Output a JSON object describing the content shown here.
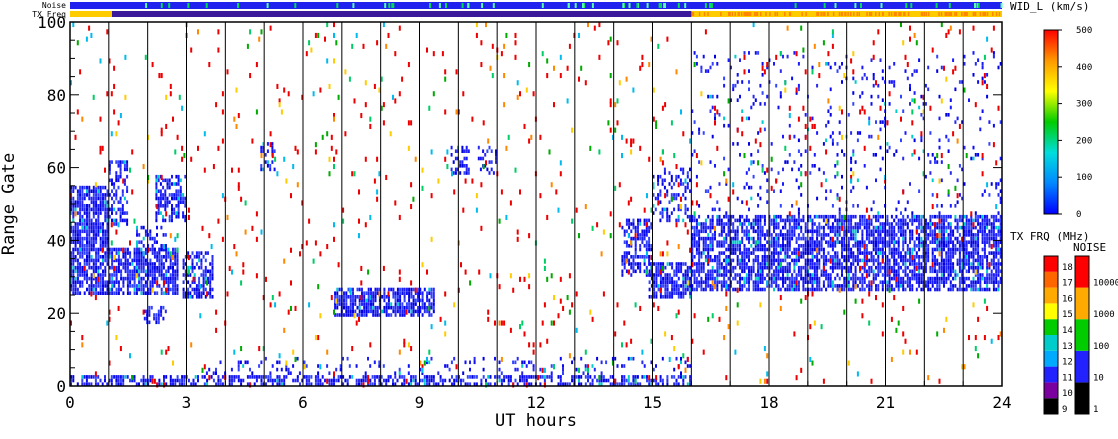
{
  "chart_data": {
    "type": "heatmap",
    "xlabel": "UT hours",
    "ylabel": "Range Gate",
    "xlim": [
      0,
      24
    ],
    "ylim": [
      0,
      100
    ],
    "x_ticks": [
      0,
      3,
      6,
      9,
      12,
      15,
      18,
      21,
      24
    ],
    "x_tick_labels": [
      "0",
      "3",
      "6",
      "9",
      "12",
      "15",
      "18",
      "21",
      "24"
    ],
    "y_ticks": [
      0,
      20,
      40,
      60,
      80,
      100
    ],
    "y_tick_labels": [
      "0",
      "20",
      "40",
      "60",
      "80",
      "100"
    ],
    "hour_lines": [
      1,
      2,
      3,
      4,
      5,
      6,
      7,
      8,
      9,
      10,
      11,
      12,
      13,
      14,
      15,
      16,
      17,
      18,
      19,
      20,
      21,
      22,
      23
    ],
    "grid": false,
    "header_bars": {
      "noise_label": "Noise",
      "txfreq_label": "TX Freq",
      "txfreq_color_change_hour": 16
    },
    "scatter_regions": [
      {
        "t0": 0.0,
        "t1": 1.0,
        "g0": 25,
        "g1": 55,
        "density": 0.8,
        "palette": "blue"
      },
      {
        "t0": 1.0,
        "t1": 2.8,
        "g0": 25,
        "g1": 38,
        "density": 0.75,
        "palette": "blue"
      },
      {
        "t0": 1.0,
        "t1": 1.5,
        "g0": 44,
        "g1": 62,
        "density": 0.45,
        "palette": "blue"
      },
      {
        "t0": 2.2,
        "t1": 3.0,
        "g0": 45,
        "g1": 58,
        "density": 0.55,
        "palette": "blue"
      },
      {
        "t0": 1.7,
        "t1": 2.5,
        "g0": 37,
        "g1": 44,
        "density": 0.35,
        "palette": "blue"
      },
      {
        "t0": 2.9,
        "t1": 3.7,
        "g0": 24,
        "g1": 37,
        "density": 0.6,
        "palette": "blue"
      },
      {
        "t0": 1.9,
        "t1": 2.5,
        "g0": 17,
        "g1": 22,
        "density": 0.5,
        "palette": "blue"
      },
      {
        "t0": 4.9,
        "t1": 5.3,
        "g0": 59,
        "g1": 67,
        "density": 0.4,
        "palette": "blue"
      },
      {
        "t0": 6.8,
        "t1": 9.4,
        "g0": 19,
        "g1": 27,
        "density": 0.75,
        "palette": "blue"
      },
      {
        "t0": 9.8,
        "t1": 10.3,
        "g0": 58,
        "g1": 66,
        "density": 0.45,
        "palette": "blue"
      },
      {
        "t0": 10.5,
        "t1": 11.0,
        "g0": 58,
        "g1": 66,
        "density": 0.35,
        "palette": "blue"
      },
      {
        "t0": 14.2,
        "t1": 15.0,
        "g0": 30,
        "g1": 46,
        "density": 0.55,
        "palette": "blue"
      },
      {
        "t0": 14.9,
        "t1": 16.0,
        "g0": 24,
        "g1": 34,
        "density": 0.75,
        "palette": "blue"
      },
      {
        "t0": 15.0,
        "t1": 16.0,
        "g0": 45,
        "g1": 60,
        "density": 0.35,
        "palette": "blue"
      },
      {
        "t0": 16.0,
        "t1": 24.0,
        "g0": 26,
        "g1": 47,
        "density": 0.72,
        "palette": "blue"
      },
      {
        "t0": 16.0,
        "t1": 24.0,
        "g0": 47,
        "g1": 92,
        "density": 0.07,
        "palette": "blue"
      },
      {
        "t0": 0.0,
        "t1": 16.0,
        "g0": 0,
        "g1": 3,
        "density": 0.55,
        "palette": "blue"
      },
      {
        "t0": 3.5,
        "t1": 16.0,
        "g0": 3,
        "g1": 8,
        "density": 0.12,
        "palette": "blue"
      },
      {
        "t0": 0.0,
        "t1": 24.0,
        "g0": 0,
        "g1": 100,
        "density": 0.012,
        "palette": "red"
      },
      {
        "t0": 0.0,
        "t1": 24.0,
        "g0": 0,
        "g1": 100,
        "density": 0.01,
        "palette": "mixed"
      }
    ],
    "colorbars": [
      {
        "title": "WID_L (km/s)",
        "type": "continuous",
        "min": 0,
        "max": 500,
        "ticks": [
          "0",
          "100",
          "200",
          "300",
          "400",
          "500"
        ],
        "colors": [
          "#0000ff",
          "#0088ff",
          "#00dddd",
          "#00cc00",
          "#ffff00",
          "#ff9900",
          "#ff0000"
        ]
      },
      {
        "title": "TX FRQ (MHz)",
        "type": "discrete",
        "labels": [
          "9",
          "10",
          "11",
          "12",
          "13",
          "14",
          "15",
          "16",
          "17",
          "18"
        ],
        "colors": [
          "#000000",
          "#7a00a0",
          "#2222ff",
          "#00aaff",
          "#00cccc",
          "#00cc00",
          "#ffff00",
          "#ffaa00",
          "#ff6600",
          "#ff0000"
        ]
      },
      {
        "title": "NOISE",
        "type": "discrete",
        "labels": [
          "1",
          "10",
          "100",
          "1000",
          "10000"
        ],
        "colors": [
          "#000000",
          "#2222ff",
          "#00cc00",
          "#ffaa00",
          "#ff0000"
        ]
      }
    ]
  }
}
